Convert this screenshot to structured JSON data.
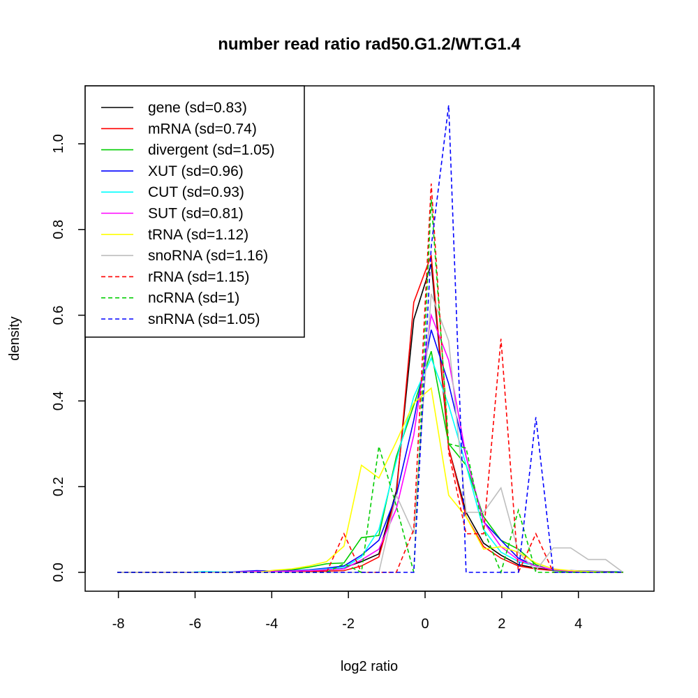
{
  "chart_data": {
    "type": "line",
    "title": "number read ratio rad50.G1.2/WT.G1.4",
    "xlabel": "log2 ratio",
    "ylabel": "density",
    "xlim": [
      -8.6,
      6.2
    ],
    "ylim": [
      -0.045,
      1.14
    ],
    "xticks": [
      -8,
      -6,
      -4,
      -2,
      0,
      2,
      4
    ],
    "xtick_labels": [
      "-8",
      "-6",
      "-4",
      "-2",
      "0",
      "2",
      "4"
    ],
    "yticks": [
      0.0,
      0.2,
      0.4,
      0.6,
      0.8,
      1.0
    ],
    "ytick_labels": [
      "0.0",
      "0.2",
      "0.4",
      "0.6",
      "0.8",
      "1.0"
    ],
    "grid": false,
    "legend_position": "top-left",
    "x": [
      -8.03,
      -7.575,
      -7.12,
      -6.665,
      -6.21,
      -5.755,
      -5.3,
      -4.845,
      -4.39,
      -3.935,
      -3.48,
      -3.025,
      -2.57,
      -2.115,
      -1.66,
      -1.205,
      -0.75,
      -0.295,
      0.16,
      0.615,
      1.07,
      1.525,
      1.98,
      2.435,
      2.89,
      3.345,
      3.8,
      4.255,
      4.71,
      5.165
    ],
    "series": [
      {
        "name": "gene (sd=0.83)",
        "color": "#000000",
        "dashed": false,
        "values": [
          0,
          0,
          0,
          0,
          0,
          0,
          0,
          0.001,
          0.002,
          0.003,
          0.003,
          0.004,
          0.006,
          0.011,
          0.025,
          0.043,
          0.19,
          0.59,
          0.72,
          0.29,
          0.14,
          0.068,
          0.04,
          0.018,
          0.01,
          0.005,
          0.004,
          0.002,
          0.002,
          0.001
        ]
      },
      {
        "name": "mRNA (sd=0.74)",
        "color": "#ff0000",
        "dashed": false,
        "values": [
          0,
          0,
          0,
          0,
          0,
          0,
          0,
          0,
          0.001,
          0.001,
          0.002,
          0.002,
          0.003,
          0.004,
          0.015,
          0.036,
          0.18,
          0.63,
          0.74,
          0.29,
          0.13,
          0.06,
          0.033,
          0.015,
          0.008,
          0.004,
          0.002,
          0.001,
          0.001,
          0
        ]
      },
      {
        "name": "divergent (sd=1.05)",
        "color": "#00cd00",
        "dashed": false,
        "values": [
          0,
          0,
          0,
          0,
          0,
          0,
          0,
          0.001,
          0.002,
          0.003,
          0.006,
          0.012,
          0.02,
          0.022,
          0.081,
          0.086,
          0.27,
          0.39,
          0.516,
          0.3,
          0.25,
          0.13,
          0.075,
          0.054,
          0.018,
          0.004,
          0.002,
          0.001,
          0.001,
          0
        ]
      },
      {
        "name": "XUT (sd=0.96)",
        "color": "#0000ff",
        "dashed": false,
        "values": [
          0,
          0,
          0,
          0,
          0,
          0,
          0,
          0.002,
          0.004,
          0.003,
          0.004,
          0.006,
          0.01,
          0.015,
          0.04,
          0.075,
          0.18,
          0.355,
          0.566,
          0.44,
          0.27,
          0.118,
          0.075,
          0.033,
          0.015,
          0.006,
          0.004,
          0.003,
          0.002,
          0.001
        ]
      },
      {
        "name": "CUT (sd=0.93)",
        "color": "#00ffff",
        "dashed": false,
        "values": [
          0,
          0,
          0,
          0,
          0,
          0.002,
          0.001,
          0.001,
          0.002,
          0.002,
          0.003,
          0.005,
          0.008,
          0.011,
          0.036,
          0.1,
          0.26,
          0.41,
          0.5,
          0.39,
          0.25,
          0.1,
          0.047,
          0.025,
          0.015,
          0.006,
          0.003,
          0.002,
          0.001,
          0.001
        ]
      },
      {
        "name": "SUT (sd=0.81)",
        "color": "#ff00ff",
        "dashed": false,
        "values": [
          0,
          0,
          0,
          0,
          0,
          0,
          0,
          0.001,
          0.002,
          0.002,
          0.003,
          0.004,
          0.006,
          0.008,
          0.029,
          0.054,
          0.148,
          0.32,
          0.6,
          0.495,
          0.27,
          0.118,
          0.06,
          0.029,
          0.015,
          0.006,
          0.003,
          0.002,
          0.001,
          0
        ]
      },
      {
        "name": "tRNA (sd=1.12)",
        "color": "#ffff00",
        "dashed": false,
        "values": [
          0,
          0,
          0,
          0,
          0,
          0,
          0,
          0,
          0,
          0.005,
          0.008,
          0.015,
          0.025,
          0.061,
          0.25,
          0.22,
          0.305,
          0.395,
          0.43,
          0.18,
          0.13,
          0.054,
          0.06,
          0.047,
          0.022,
          0.008,
          0.004,
          0.002,
          0.001,
          0
        ]
      },
      {
        "name": "snoRNA (sd=1.16)",
        "color": "#bebebe",
        "dashed": false,
        "values": [
          0,
          0,
          0,
          0,
          0,
          0,
          0,
          0,
          0,
          0,
          0,
          0,
          0,
          0,
          0,
          0,
          0.18,
          0.09,
          0.65,
          0.54,
          0.14,
          0.14,
          0.197,
          0.047,
          0.004,
          0.057,
          0.057,
          0.03,
          0.03,
          0
        ]
      },
      {
        "name": "rRNA (sd=1.15)",
        "color": "#ff0000",
        "dashed": true,
        "values": [
          0,
          0,
          0,
          0,
          0,
          0,
          0,
          0,
          0,
          0,
          0,
          0,
          0,
          0.09,
          0,
          0,
          0,
          0.1,
          0.907,
          0.28,
          0.09,
          0.09,
          0.545,
          0,
          0.09,
          0,
          0,
          0,
          0,
          0
        ]
      },
      {
        "name": "ncRNA (sd=1)",
        "color": "#00cd00",
        "dashed": true,
        "values": [
          0,
          0,
          0,
          0,
          0,
          0,
          0,
          0,
          0,
          0,
          0,
          0,
          0,
          0.02,
          0.0,
          0.294,
          0.155,
          0,
          0.87,
          0.3,
          0.29,
          0.1,
          0,
          0.145,
          0,
          0,
          0,
          0,
          0,
          0
        ]
      },
      {
        "name": "snRNA (sd=1.05)",
        "color": "#0000ff",
        "dashed": true,
        "values": [
          0,
          0,
          0,
          0,
          0,
          0,
          0,
          0,
          0,
          0,
          0,
          0,
          0,
          0,
          0,
          0,
          0,
          0,
          0.76,
          1.09,
          0,
          0,
          0,
          0,
          0.362,
          0,
          0,
          0,
          0,
          0
        ]
      }
    ]
  }
}
